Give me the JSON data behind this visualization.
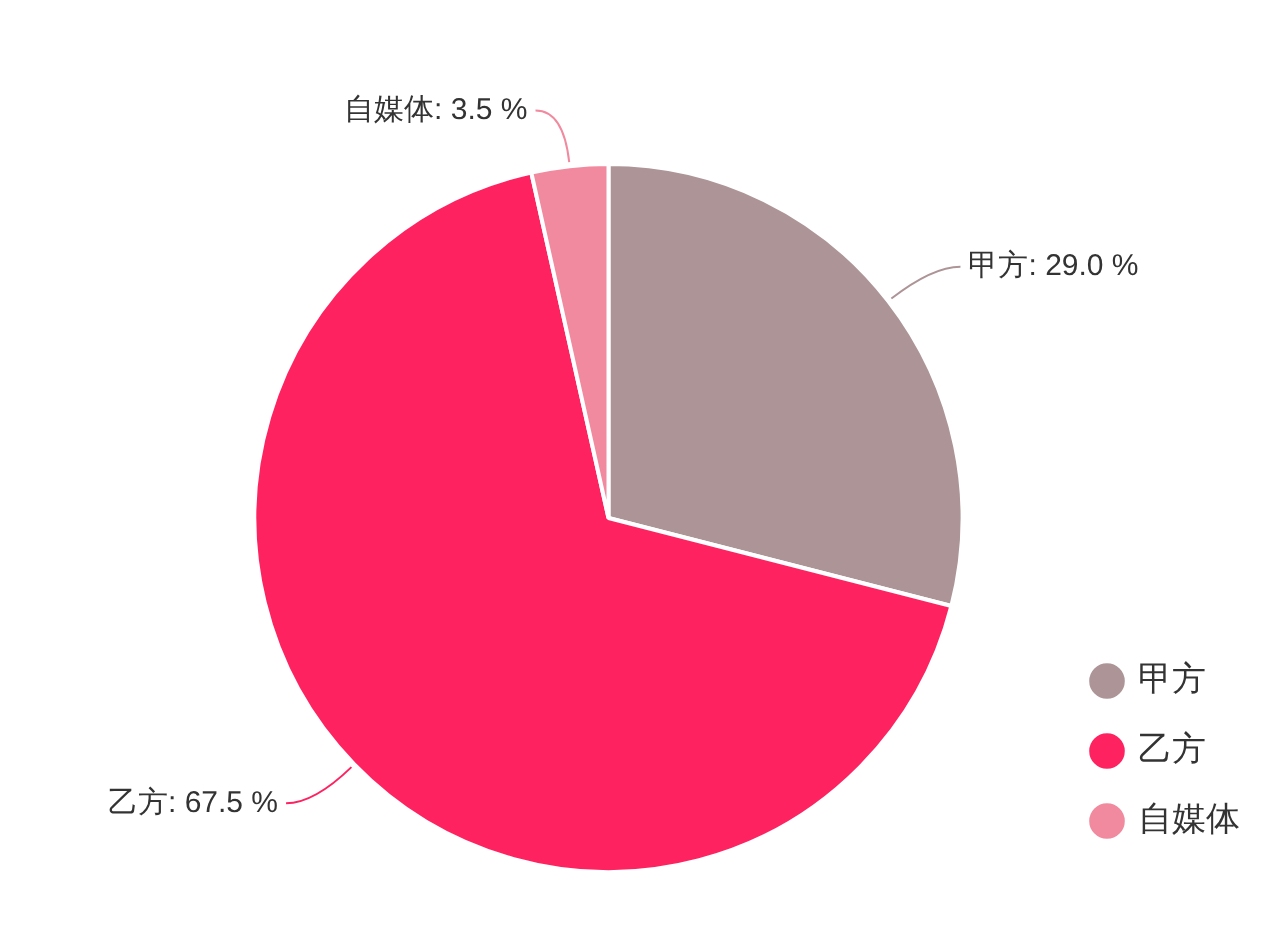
{
  "chart_data": {
    "type": "pie",
    "categories": [
      "甲方",
      "乙方",
      "自媒体"
    ],
    "values": [
      29.0,
      67.5,
      3.5
    ],
    "value_labels": [
      "甲方: 29.0 %",
      "乙方: 67.5 %",
      "自媒体: 3.5 %"
    ],
    "colors": [
      "#ad9497",
      "#fe2360",
      "#f1899f"
    ],
    "legend": "bottom right"
  }
}
